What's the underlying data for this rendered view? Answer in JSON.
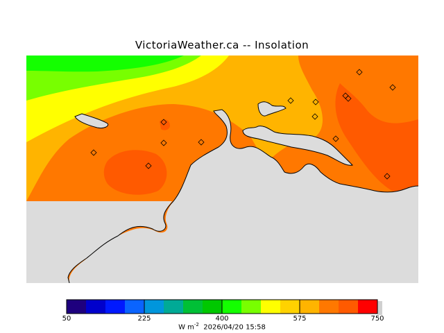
{
  "title": "VictoriaWeather.ca  --  Insolation",
  "colors": {
    "land": "#dcdcdc",
    "bins": [
      "#1e007e",
      "#0000cc",
      "#0019ff",
      "#0a64ff",
      "#0096dc",
      "#00aa96",
      "#00c036",
      "#00c800",
      "#14ff00",
      "#78ff00",
      "#ffff00",
      "#ffd200",
      "#ffb400",
      "#ff7800",
      "#ff5a00",
      "#ff3200",
      "#ff0000"
    ]
  },
  "legend": {
    "ticks": [
      "50",
      "225",
      "400",
      "575",
      "750"
    ],
    "units_text": "W m",
    "units_exp": "-2",
    "timestamp": "2026/04/20 15:58"
  },
  "stations_count": 14
}
